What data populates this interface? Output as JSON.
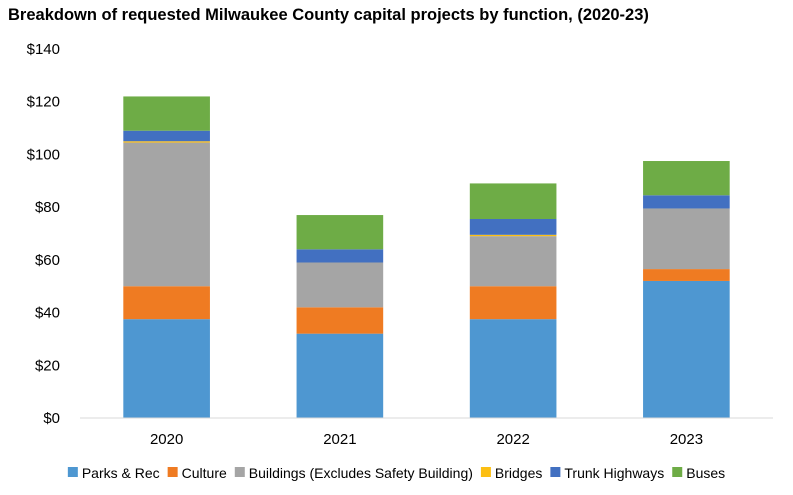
{
  "chart_data": {
    "type": "bar",
    "stacked": true,
    "title": "Breakdown of requested Milwaukee County capital projects by function, (2020-23)",
    "categories": [
      "2020",
      "2021",
      "2022",
      "2023"
    ],
    "ylim": [
      0,
      140
    ],
    "yticks": [
      0,
      20,
      40,
      60,
      80,
      100,
      120,
      140
    ],
    "ytick_labels": [
      "$0",
      "$20",
      "$40",
      "$60",
      "$80",
      "$100",
      "$120",
      "$140"
    ],
    "grid": false,
    "legend_position": "bottom",
    "series": [
      {
        "name": "Parks & Rec",
        "color": "#4e97d1",
        "values": [
          37.5,
          32,
          37.5,
          52
        ]
      },
      {
        "name": "Culture",
        "color": "#ef7b22",
        "values": [
          12.5,
          10,
          12.5,
          4.5
        ]
      },
      {
        "name": "Buildings (Excludes Safety Building)",
        "color": "#a5a5a5",
        "values": [
          54.5,
          17,
          19,
          23
        ]
      },
      {
        "name": "Bridges",
        "color": "#fcbf13",
        "values": [
          0.5,
          0,
          0.5,
          0
        ]
      },
      {
        "name": "Trunk Highways",
        "color": "#4270c1",
        "values": [
          4,
          5,
          6,
          5
        ]
      },
      {
        "name": "Buses",
        "color": "#6eac46",
        "values": [
          13,
          13,
          13.5,
          13
        ]
      }
    ]
  }
}
